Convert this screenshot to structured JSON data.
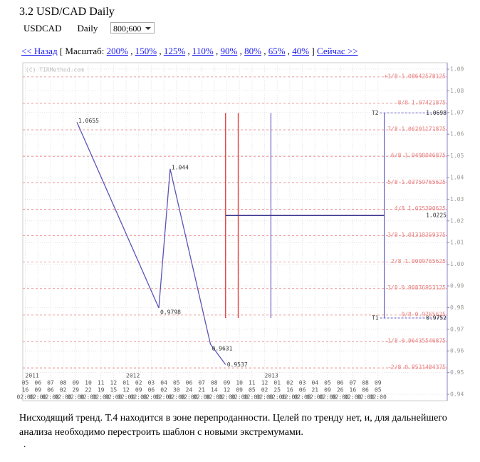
{
  "header": {
    "title": "3.2 USD/CAD Daily",
    "symbol": "USDCAD",
    "period": "Daily",
    "size": "800;600"
  },
  "nav": {
    "back": "<< Назад",
    "scale_open": "[ Масштаб:",
    "scales": [
      "200%",
      "150%",
      "125%",
      "110%",
      "90%",
      "80%",
      "65%",
      "40%"
    ],
    "scale_close": "]",
    "now": "Сейчас >>"
  },
  "chart_data": {
    "type": "line",
    "watermark": "(C) TIRMethod.com",
    "categories": [
      "05",
      "06",
      "07",
      "08",
      "09",
      "10",
      "11",
      "12",
      "01",
      "02",
      "03",
      "04",
      "05",
      "06",
      "07",
      "08",
      "09",
      "10",
      "11",
      "12",
      "01",
      "02",
      "03",
      "04",
      "05",
      "06",
      "07",
      "08",
      "09"
    ],
    "day_labels": [
      "16",
      "09",
      "06",
      "02",
      "29",
      "22",
      "19",
      "15",
      "12",
      "09",
      "06",
      "02",
      "30",
      "24",
      "21",
      "14",
      "12",
      "09",
      "05",
      "02",
      "25",
      "16",
      "06",
      "21",
      "09",
      "26",
      "16",
      "06",
      "05"
    ],
    "time_labels": [
      "02:00",
      "02:00",
      "02:00",
      "02:00",
      "02:00",
      "02:00",
      "02:00",
      "02:00",
      "02:00",
      "02:00",
      "02:00",
      "02:00",
      "02:00",
      "02:00",
      "02:00",
      "02:00",
      "02:00",
      "02:00",
      "02:00",
      "02:00",
      "02:00",
      "02:00",
      "02:00",
      "02:00",
      "02:00",
      "02:00",
      "02:00",
      "02:00",
      "02:00"
    ],
    "years": [
      {
        "value": 0,
        "label": "2011"
      },
      {
        "value": 8,
        "label": "2012"
      },
      {
        "value": 19,
        "label": "2013"
      }
    ],
    "xlim": [
      -0.2,
      33.5
    ],
    "ylim": [
      0.94,
      1.09
    ],
    "yticks": [
      0.94,
      0.95,
      0.96,
      0.97,
      0.98,
      0.99,
      {
        "value": 1,
        "label": "1.00"
      },
      1.01,
      1.02,
      1.03,
      1.04,
      1.05,
      1.06,
      1.07,
      1.08,
      1.09
    ],
    "grid": true,
    "x": [
      4.1,
      10.6,
      11.5,
      14.7,
      15.9
    ],
    "values": [
      1.0655,
      0.9798,
      1.044,
      0.9631,
      0.9537
    ],
    "color": "#5a55b5",
    "levels": [
      {
        "value": 1.08642578125,
        "label": "+1/8 1.08642578125"
      },
      {
        "value": 1.07421875,
        "label": "8/8 1.07421875"
      },
      {
        "value": 1.06201171875,
        "label": "7/8 1.06201171875"
      },
      {
        "value": 1.0498046875,
        "label": "6/8 1.0498046875"
      },
      {
        "value": 1.03759765625,
        "label": "5/8 1.03759765625"
      },
      {
        "value": 1.025390625,
        "label": "4/8 1.025390625"
      },
      {
        "value": 1.01318359375,
        "label": "3/8 1.01318359375"
      },
      {
        "value": 1.0009765625,
        "label": "2/8 1.0009765625"
      },
      {
        "value": 0.98876953125,
        "label": "1/8 0.98876953125"
      },
      {
        "value": 0.9765625,
        "label": "0/8 0.9765625"
      },
      {
        "value": 0.96435546875,
        "label": "-1/8 0.96435546875"
      },
      {
        "value": 0.9521484375,
        "label": "-2/8 0.9521484375"
      }
    ],
    "level_color": "#e88080",
    "targets": [
      {
        "label": "T2",
        "value": 1.0698
      },
      {
        "label": "T1",
        "value": 0.9752
      }
    ],
    "hline": 1.0225,
    "vlines": [
      {
        "x": 15.9,
        "color": "#e03030"
      },
      {
        "x": 16.9,
        "color": "#e03030"
      },
      {
        "x": 19.5,
        "color": "#6a60c8"
      },
      {
        "x": 28.5,
        "color": "#6a60c8"
      }
    ]
  },
  "text": {
    "paragraph": "Нисходящий тренд. Т.4 находится в зоне перепроданности. Целей по тренду нет, и, для дальнейшего анализа необходимо перестроить шаблон с новыми экстремумами.",
    "dot": "."
  }
}
